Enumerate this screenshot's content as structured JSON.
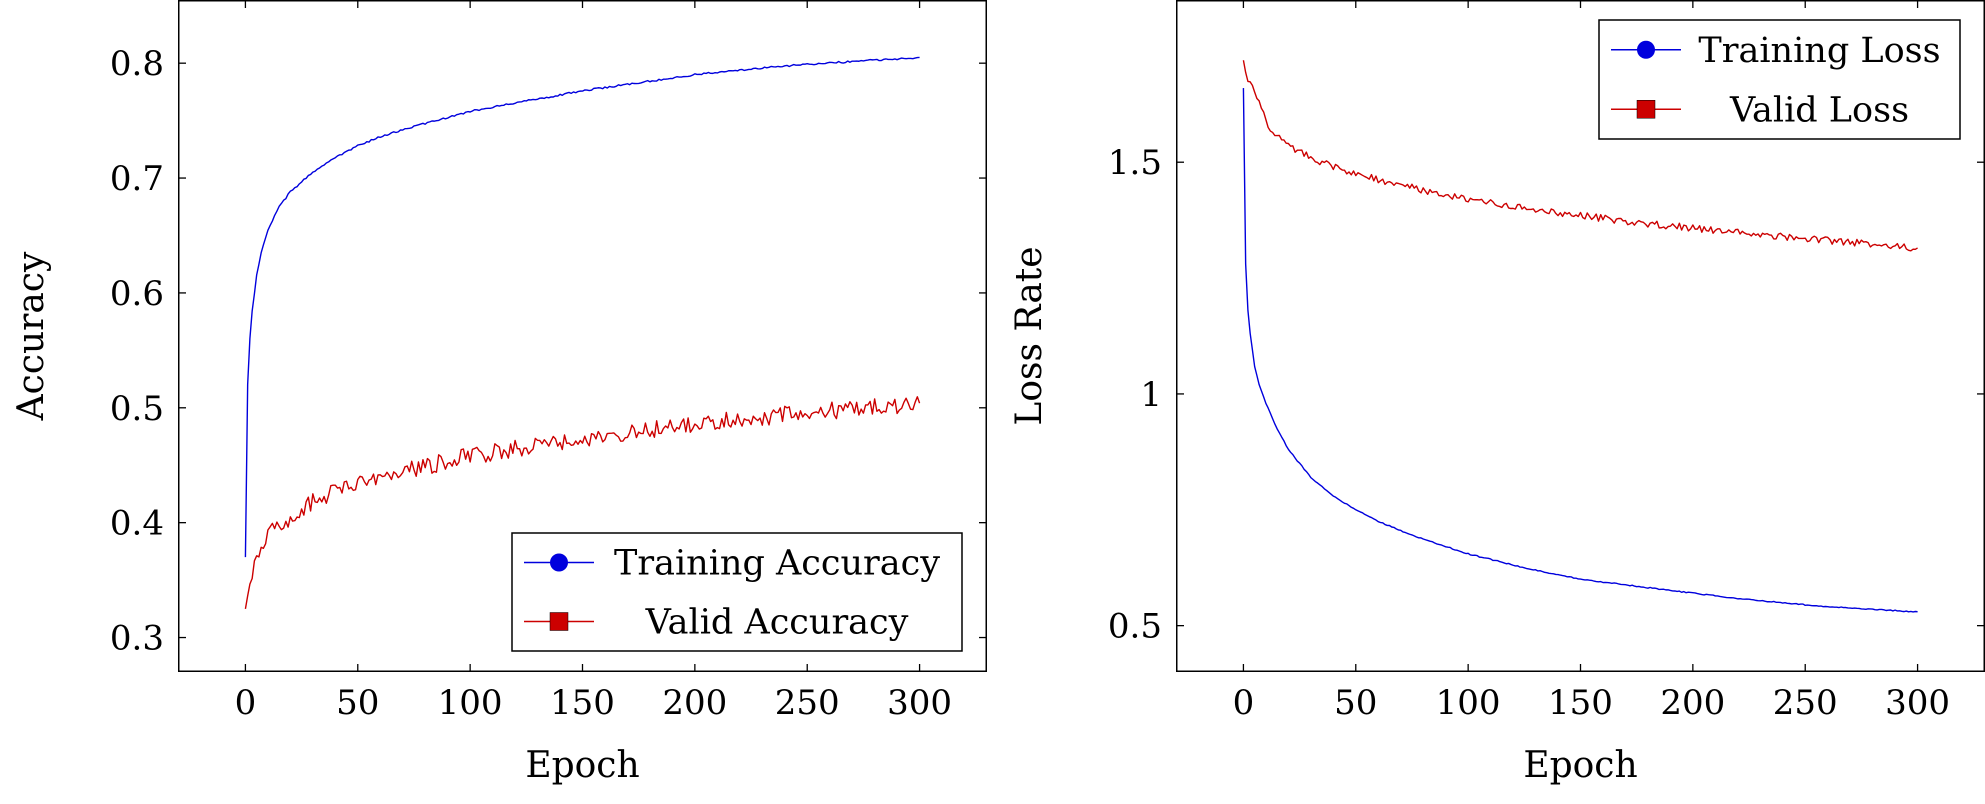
{
  "colors": {
    "training": "#0000dd",
    "valid": "#cc0000",
    "axis": "#000000"
  },
  "chart_data": [
    {
      "type": "line",
      "title": "",
      "xlabel": "Epoch",
      "ylabel": "Accuracy",
      "xlim": [
        -30,
        330
      ],
      "ylim": [
        0.27,
        0.855
      ],
      "xticks": [
        0,
        50,
        100,
        150,
        200,
        250,
        300
      ],
      "yticks": [
        0.3,
        0.4,
        0.5,
        0.6,
        0.7,
        0.8
      ],
      "ytick_labels": [
        "0.3",
        "0.4",
        "0.5",
        "0.6",
        "0.7",
        "0.8"
      ],
      "legend_position": "bottom-right",
      "series": [
        {
          "name": "Training Accuracy",
          "color_key": "training",
          "marker": "circle",
          "noise": 0.0008,
          "x": [
            0,
            1,
            2,
            3,
            5,
            7,
            10,
            15,
            20,
            30,
            40,
            50,
            60,
            75,
            100,
            125,
            150,
            175,
            200,
            225,
            250,
            275,
            300
          ],
          "y": [
            0.37,
            0.52,
            0.56,
            0.585,
            0.615,
            0.635,
            0.655,
            0.675,
            0.688,
            0.705,
            0.718,
            0.728,
            0.736,
            0.745,
            0.758,
            0.767,
            0.776,
            0.783,
            0.79,
            0.795,
            0.799,
            0.802,
            0.805
          ]
        },
        {
          "name": "Valid Accuracy",
          "color_key": "valid",
          "marker": "square",
          "noise": 0.0075,
          "x": [
            0,
            2,
            5,
            10,
            20,
            30,
            40,
            50,
            75,
            100,
            125,
            150,
            175,
            200,
            225,
            250,
            275,
            300
          ],
          "y": [
            0.325,
            0.345,
            0.37,
            0.39,
            0.405,
            0.418,
            0.428,
            0.435,
            0.447,
            0.458,
            0.466,
            0.473,
            0.479,
            0.486,
            0.491,
            0.496,
            0.5,
            0.504
          ]
        }
      ]
    },
    {
      "type": "line",
      "title": "",
      "xlabel": "Epoch",
      "ylabel": "Loss Rate",
      "xlim": [
        -30,
        330
      ],
      "ylim": [
        0.4,
        1.85
      ],
      "xticks": [
        0,
        50,
        100,
        150,
        200,
        250,
        300
      ],
      "yticks": [
        0.5,
        1.0,
        1.5
      ],
      "ytick_labels": [
        "0.5",
        "1",
        "1.5"
      ],
      "legend_position": "top-right",
      "series": [
        {
          "name": "Training Loss",
          "color_key": "training",
          "marker": "circle",
          "noise": 0.0012,
          "x": [
            0,
            1,
            2,
            3,
            5,
            7,
            10,
            15,
            20,
            30,
            40,
            50,
            60,
            75,
            100,
            125,
            150,
            175,
            200,
            225,
            250,
            275,
            300
          ],
          "y": [
            1.66,
            1.28,
            1.18,
            1.13,
            1.06,
            1.02,
            0.98,
            0.925,
            0.88,
            0.82,
            0.78,
            0.75,
            0.725,
            0.695,
            0.655,
            0.625,
            0.6,
            0.585,
            0.57,
            0.556,
            0.545,
            0.536,
            0.53
          ]
        },
        {
          "name": "Valid Loss",
          "color_key": "valid",
          "marker": "square",
          "noise": 0.0075,
          "x": [
            0,
            2,
            5,
            8,
            10,
            15,
            20,
            30,
            40,
            50,
            75,
            100,
            125,
            150,
            175,
            200,
            225,
            250,
            275,
            300
          ],
          "y": [
            1.72,
            1.68,
            1.65,
            1.62,
            1.585,
            1.555,
            1.535,
            1.51,
            1.49,
            1.475,
            1.445,
            1.42,
            1.4,
            1.385,
            1.37,
            1.358,
            1.347,
            1.335,
            1.325,
            1.315
          ]
        }
      ]
    }
  ]
}
